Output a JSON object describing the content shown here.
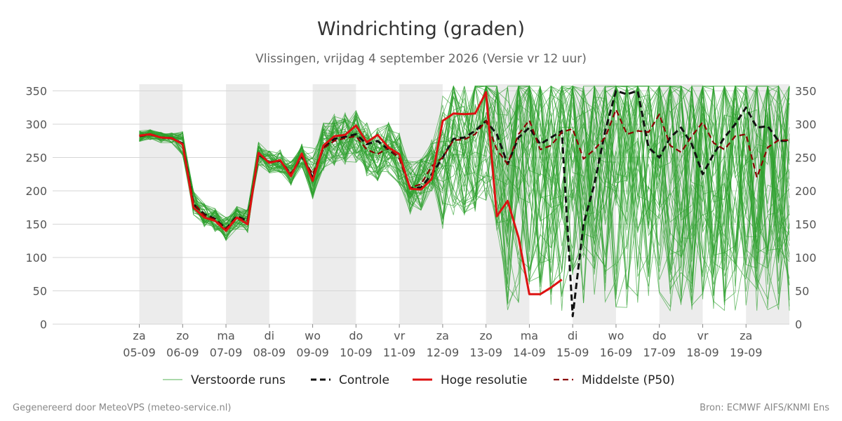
{
  "footer": {
    "left": "Gegenereerd door MeteoVPS (meteo-service.nl)",
    "right": "Bron: ECMWF AIFS/KNMI Ens"
  },
  "chart_data": {
    "type": "line",
    "title": "Windrichting (graden)",
    "subtitle": "Vlissingen, vrijdag  4 september 2026 (Versie vr 12 uur)",
    "ylim": [
      0,
      360
    ],
    "yticks": [
      0,
      50,
      100,
      150,
      200,
      250,
      300,
      350
    ],
    "x_unit": "hours since 05-09 00:00",
    "xlim": [
      -48,
      360
    ],
    "x_ticks": [
      {
        "day": "za",
        "date": "05-09"
      },
      {
        "day": "zo",
        "date": "06-09"
      },
      {
        "day": "ma",
        "date": "07-09"
      },
      {
        "day": "di",
        "date": "08-09"
      },
      {
        "day": "wo",
        "date": "09-09"
      },
      {
        "day": "do",
        "date": "10-09"
      },
      {
        "day": "vr",
        "date": "11-09"
      },
      {
        "day": "za",
        "date": "12-09"
      },
      {
        "day": "zo",
        "date": "13-09"
      },
      {
        "day": "ma",
        "date": "14-09"
      },
      {
        "day": "di",
        "date": "15-09"
      },
      {
        "day": "wo",
        "date": "16-09"
      },
      {
        "day": "do",
        "date": "17-09"
      },
      {
        "day": "vr",
        "date": "18-09"
      },
      {
        "day": "za",
        "date": "19-09"
      }
    ],
    "grid": true,
    "shaded_days": [
      "05-09",
      "07-09",
      "09-09",
      "11-09",
      "13-09",
      "15-09",
      "17-09",
      "19-09"
    ],
    "legend": {
      "position": "bottom",
      "entries": [
        {
          "label": "Verstoorde runs",
          "color": "#2ca02c",
          "style": "thin"
        },
        {
          "label": "Controle",
          "color": "#111111",
          "style": "dashed"
        },
        {
          "label": "Hoge resolutie",
          "color": "#dd1111",
          "style": "solid"
        },
        {
          "label": "Middelste (P50)",
          "color": "#8b0000",
          "style": "dashed"
        }
      ]
    },
    "series": [
      {
        "name": "Hoge resolutie",
        "color": "#dd1111",
        "x": [
          0,
          6,
          12,
          18,
          24,
          30,
          36,
          42,
          48,
          54,
          60,
          66,
          72,
          78,
          84,
          90,
          96,
          102,
          108,
          114,
          120,
          126,
          132,
          138,
          144,
          150,
          156,
          162,
          168,
          174,
          180,
          186,
          192,
          198,
          204,
          210,
          216,
          222,
          228,
          234,
          240,
          246
        ],
        "y": [
          283,
          285,
          280,
          279,
          270,
          175,
          160,
          155,
          140,
          160,
          150,
          257,
          242,
          246,
          222,
          256,
          215,
          268,
          282,
          284,
          298,
          273,
          284,
          265,
          255,
          203,
          202,
          218,
          305,
          316,
          315,
          316,
          348,
          162,
          185,
          130,
          45,
          45,
          55,
          67,
          null,
          null
        ]
      },
      {
        "name": "Controle",
        "color": "#111111",
        "x": [
          0,
          6,
          12,
          18,
          24,
          30,
          36,
          42,
          48,
          54,
          60,
          66,
          72,
          78,
          84,
          90,
          96,
          102,
          108,
          114,
          120,
          126,
          132,
          138,
          144,
          150,
          156,
          162,
          168,
          174,
          180,
          186,
          192,
          198,
          204,
          210,
          216,
          222,
          228,
          234,
          240,
          246,
          252,
          258,
          264,
          270,
          276,
          282,
          288,
          294,
          300,
          306,
          312,
          318,
          324,
          330,
          336,
          342,
          348,
          354,
          360
        ],
        "y": [
          282,
          285,
          280,
          279,
          271,
          180,
          165,
          158,
          143,
          162,
          155,
          255,
          243,
          245,
          225,
          252,
          220,
          265,
          278,
          281,
          285,
          270,
          275,
          262,
          250,
          204,
          205,
          225,
          250,
          278,
          280,
          290,
          305,
          285,
          240,
          280,
          295,
          270,
          280,
          290,
          12,
          150,
          210,
          290,
          350,
          345,
          350,
          265,
          250,
          280,
          295,
          270,
          225,
          255,
          280,
          300,
          325,
          295,
          297,
          275,
          275
        ]
      },
      {
        "name": "Middelste (P50)",
        "color": "#8b0000",
        "x": [
          0,
          6,
          12,
          18,
          24,
          30,
          36,
          42,
          48,
          54,
          60,
          66,
          72,
          78,
          84,
          90,
          96,
          102,
          108,
          114,
          120,
          126,
          132,
          138,
          144,
          150,
          156,
          162,
          168,
          174,
          180,
          186,
          192,
          198,
          204,
          210,
          216,
          222,
          228,
          234,
          240,
          246,
          252,
          258,
          264,
          270,
          276,
          282,
          288,
          294,
          300,
          306,
          312,
          318,
          324,
          330,
          336,
          342,
          348,
          354,
          360
        ],
        "y": [
          282,
          284,
          280,
          279,
          271,
          182,
          163,
          157,
          143,
          160,
          155,
          256,
          243,
          245,
          226,
          253,
          225,
          264,
          275,
          279,
          282,
          262,
          255,
          265,
          248,
          205,
          210,
          237,
          250,
          276,
          277,
          285,
          305,
          262,
          240,
          285,
          306,
          262,
          268,
          288,
          293,
          248,
          262,
          280,
          322,
          285,
          290,
          288,
          315,
          268,
          258,
          282,
          303,
          272,
          262,
          282,
          285,
          220,
          265,
          276,
          276
        ]
      }
    ],
    "ensemble": {
      "name": "Verstoorde runs",
      "color": "#2ca02c",
      "members": 50,
      "step_hours": 6,
      "note_values_start": 0
    }
  }
}
